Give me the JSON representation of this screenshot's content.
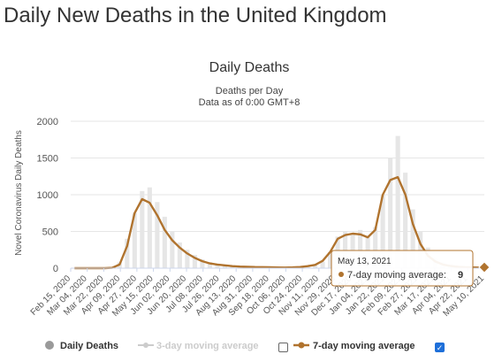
{
  "page": {
    "heading": "Daily New Deaths in the United Kingdom"
  },
  "chart_data": {
    "type": "bar",
    "title": "Daily Deaths",
    "subtitle_lines": [
      "Deaths per Day",
      "Data as of 0:00 GMT+8"
    ],
    "xlabel": "",
    "ylabel": "Novel Coronavirus Daily Deaths",
    "ylim": [
      0,
      2000
    ],
    "yticks": [
      0,
      500,
      1000,
      1500,
      2000
    ],
    "grid": true,
    "legend_position": "bottom",
    "colors": {
      "bars": "#e6e6e6",
      "sma3": "#bbbbbb",
      "sma7": "#b0732e",
      "text": "#333333",
      "tooltip_border": "#b0732e"
    },
    "x_tick_labels": [
      "Feb 15, 2020",
      "Mar 04, 2020",
      "Mar 22, 2020",
      "Apr 09, 2020",
      "Apr 27, 2020",
      "May 15, 2020",
      "Jun 02, 2020",
      "Jun 20, 2020",
      "Jul 08, 2020",
      "Jul 26, 2020",
      "Aug 13, 2020",
      "Aug 31, 2020",
      "Sep 18, 2020",
      "Oct 06, 2020",
      "Oct 24, 2020",
      "Nov 11, 2020",
      "Nov 29, 2020",
      "Dec 17, 2020",
      "Jan 04, 2021",
      "Jan 22, 2021",
      "Feb 09, 2021",
      "Feb 27, 2021",
      "Mar 17, 2021",
      "Apr 04, 2021",
      "Apr 22, 2021",
      "May 10, 2021"
    ],
    "daily_deaths": [
      0,
      0,
      0,
      0,
      0,
      10,
      80,
      400,
      750,
      1050,
      1100,
      900,
      700,
      500,
      350,
      250,
      180,
      120,
      80,
      60,
      40,
      30,
      22,
      20,
      18,
      15,
      12,
      10,
      9,
      10,
      15,
      25,
      40,
      90,
      220,
      430,
      500,
      480,
      520,
      420,
      560,
      1000,
      1500,
      1800,
      1300,
      800,
      500,
      280,
      140,
      80,
      50,
      30,
      20,
      10,
      8
    ],
    "sma7": [
      0,
      0,
      0,
      0,
      0,
      5,
      50,
      300,
      750,
      940,
      890,
      720,
      520,
      380,
      280,
      200,
      140,
      95,
      65,
      50,
      38,
      28,
      22,
      19,
      16,
      14,
      12,
      10,
      9,
      11,
      16,
      28,
      45,
      100,
      220,
      400,
      450,
      470,
      460,
      420,
      520,
      1000,
      1200,
      1240,
      1000,
      600,
      330,
      170,
      90,
      50,
      30,
      18,
      12,
      10,
      9
    ],
    "series": [
      {
        "name": "Daily Deaths",
        "kind": "bar"
      },
      {
        "name": "3-day moving average",
        "kind": "line",
        "visible": false
      },
      {
        "name": "7-day moving average",
        "kind": "line",
        "visible": true
      }
    ],
    "tooltip": {
      "date": "May 13, 2021",
      "series_label": "7-day moving average:",
      "value": "9"
    }
  }
}
